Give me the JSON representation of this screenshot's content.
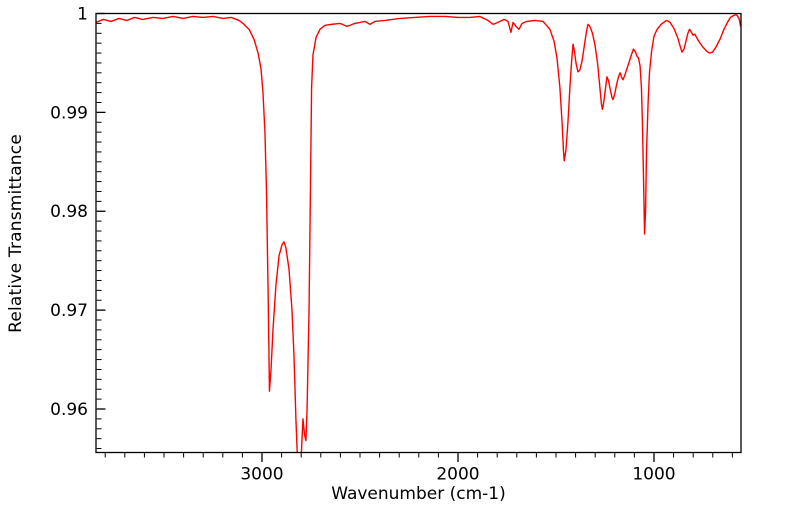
{
  "figure": {
    "background": "#ffffff",
    "axis_color": "#000000"
  },
  "chart_data": {
    "type": "line",
    "title": "",
    "xlabel": "Wavenumber (cm-1)",
    "ylabel": "Relative Transmittance",
    "grid": false,
    "legend": null,
    "x_axis": {
      "lim": [
        3847,
        556
      ],
      "reversed": true,
      "major_ticks": [
        3000,
        2000,
        1000
      ],
      "major_tick_labels": [
        "3000",
        "2000",
        "1000"
      ],
      "minor_tick_step": 100
    },
    "y_axis": {
      "lim": [
        0.9556,
        1.0
      ],
      "major_ticks": [
        1.0,
        0.99,
        0.98,
        0.97,
        0.96
      ],
      "major_tick_labels": [
        "1",
        "0.99",
        "0.98",
        "0.97",
        "0.96"
      ],
      "minor_tick_step": 0.001
    },
    "series": [
      {
        "name": "ir-spectrum",
        "color": "#ff0000",
        "line_width": 1.4,
        "points": [
          [
            3847,
            0.9991
          ],
          [
            3810,
            0.9994
          ],
          [
            3770,
            0.9992
          ],
          [
            3730,
            0.9995
          ],
          [
            3690,
            0.9993
          ],
          [
            3650,
            0.9996
          ],
          [
            3610,
            0.9994
          ],
          [
            3556,
            0.9996
          ],
          [
            3505,
            0.9995
          ],
          [
            3454,
            0.9997
          ],
          [
            3403,
            0.9995
          ],
          [
            3352,
            0.9997
          ],
          [
            3301,
            0.9996
          ],
          [
            3250,
            0.9997
          ],
          [
            3199,
            0.9995
          ],
          [
            3158,
            0.9996
          ],
          [
            3117,
            0.9993
          ],
          [
            3097,
            0.999
          ],
          [
            3066,
            0.9984
          ],
          [
            3041,
            0.9974
          ],
          [
            3020,
            0.996
          ],
          [
            3005,
            0.9944
          ],
          [
            2995,
            0.992
          ],
          [
            2985,
            0.988
          ],
          [
            2977,
            0.982
          ],
          [
            2969,
            0.972
          ],
          [
            2962,
            0.9618
          ],
          [
            2954,
            0.964
          ],
          [
            2944,
            0.968
          ],
          [
            2929,
            0.9725
          ],
          [
            2913,
            0.9755
          ],
          [
            2898,
            0.9766
          ],
          [
            2888,
            0.9769
          ],
          [
            2878,
            0.9763
          ],
          [
            2862,
            0.9741
          ],
          [
            2847,
            0.97
          ],
          [
            2837,
            0.9655
          ],
          [
            2827,
            0.959
          ],
          [
            2819,
            0.955
          ],
          [
            2811,
            0.9532
          ],
          [
            2801,
            0.9548
          ],
          [
            2791,
            0.959
          ],
          [
            2783,
            0.9574
          ],
          [
            2776,
            0.9568
          ],
          [
            2770,
            0.96
          ],
          [
            2760,
            0.97
          ],
          [
            2753,
            0.982
          ],
          [
            2747,
            0.9925
          ],
          [
            2740,
            0.9958
          ],
          [
            2724,
            0.9976
          ],
          [
            2704,
            0.9984
          ],
          [
            2679,
            0.9988
          ],
          [
            2648,
            0.9989
          ],
          [
            2602,
            0.999
          ],
          [
            2566,
            0.9987
          ],
          [
            2526,
            0.999
          ],
          [
            2474,
            0.9992
          ],
          [
            2449,
            0.9989
          ],
          [
            2423,
            0.9992
          ],
          [
            2372,
            0.9993
          ],
          [
            2296,
            0.9995
          ],
          [
            2219,
            0.9996
          ],
          [
            2143,
            0.9997
          ],
          [
            2066,
            0.9997
          ],
          [
            2000,
            0.9996
          ],
          [
            1939,
            0.9996
          ],
          [
            1888,
            0.9997
          ],
          [
            1847,
            0.9993
          ],
          [
            1821,
            0.9989
          ],
          [
            1796,
            0.9991
          ],
          [
            1765,
            0.9994
          ],
          [
            1745,
            0.9992
          ],
          [
            1730,
            0.9981
          ],
          [
            1719,
            0.9991
          ],
          [
            1704,
            0.9987
          ],
          [
            1689,
            0.9984
          ],
          [
            1673,
            0.999
          ],
          [
            1648,
            0.9992
          ],
          [
            1607,
            0.9993
          ],
          [
            1566,
            0.9992
          ],
          [
            1531,
            0.9984
          ],
          [
            1510,
            0.9972
          ],
          [
            1495,
            0.9955
          ],
          [
            1480,
            0.9925
          ],
          [
            1469,
            0.989
          ],
          [
            1462,
            0.9862
          ],
          [
            1458,
            0.9851
          ],
          [
            1449,
            0.9862
          ],
          [
            1439,
            0.989
          ],
          [
            1429,
            0.9925
          ],
          [
            1421,
            0.995
          ],
          [
            1413,
            0.9969
          ],
          [
            1406,
            0.9962
          ],
          [
            1398,
            0.995
          ],
          [
            1388,
            0.9941
          ],
          [
            1378,
            0.9943
          ],
          [
            1367,
            0.9952
          ],
          [
            1355,
            0.9968
          ],
          [
            1344,
            0.9982
          ],
          [
            1337,
            0.9989
          ],
          [
            1327,
            0.9987
          ],
          [
            1314,
            0.998
          ],
          [
            1301,
            0.9968
          ],
          [
            1288,
            0.995
          ],
          [
            1276,
            0.9925
          ],
          [
            1268,
            0.9908
          ],
          [
            1263,
            0.9903
          ],
          [
            1255,
            0.9912
          ],
          [
            1247,
            0.9925
          ],
          [
            1240,
            0.9936
          ],
          [
            1232,
            0.9932
          ],
          [
            1222,
            0.9922
          ],
          [
            1214,
            0.9915
          ],
          [
            1209,
            0.9913
          ],
          [
            1201,
            0.9918
          ],
          [
            1191,
            0.9928
          ],
          [
            1181,
            0.9936
          ],
          [
            1173,
            0.994
          ],
          [
            1166,
            0.9936
          ],
          [
            1158,
            0.9933
          ],
          [
            1148,
            0.9938
          ],
          [
            1135,
            0.9946
          ],
          [
            1122,
            0.9954
          ],
          [
            1112,
            0.996
          ],
          [
            1105,
            0.9964
          ],
          [
            1094,
            0.9961
          ],
          [
            1087,
            0.9957
          ],
          [
            1079,
            0.9955
          ],
          [
            1071,
            0.9947
          ],
          [
            1064,
            0.9925
          ],
          [
            1059,
            0.989
          ],
          [
            1053,
            0.983
          ],
          [
            1048,
            0.9777
          ],
          [
            1043,
            0.98
          ],
          [
            1038,
            0.986
          ],
          [
            1030,
            0.991
          ],
          [
            1023,
            0.994
          ],
          [
            1012,
            0.9962
          ],
          [
            1000,
            0.9977
          ],
          [
            984,
            0.9984
          ],
          [
            964,
            0.9989
          ],
          [
            944,
            0.9992
          ],
          [
            934,
            0.9993
          ],
          [
            918,
            0.9991
          ],
          [
            898,
            0.9985
          ],
          [
            878,
            0.9975
          ],
          [
            865,
            0.9966
          ],
          [
            857,
            0.9961
          ],
          [
            847,
            0.9964
          ],
          [
            837,
            0.9972
          ],
          [
            827,
            0.998
          ],
          [
            819,
            0.9984
          ],
          [
            811,
            0.9982
          ],
          [
            801,
            0.9978
          ],
          [
            791,
            0.9979
          ],
          [
            778,
            0.9974
          ],
          [
            765,
            0.997
          ],
          [
            750,
            0.9966
          ],
          [
            732,
            0.9962
          ],
          [
            717,
            0.996
          ],
          [
            701,
            0.9961
          ],
          [
            684,
            0.9966
          ],
          [
            663,
            0.9974
          ],
          [
            643,
            0.9984
          ],
          [
            625,
            0.9991
          ],
          [
            610,
            0.9996
          ],
          [
            594,
            0.9998
          ],
          [
            579,
            0.9999
          ],
          [
            566,
            0.9995
          ],
          [
            558,
            0.9987
          ]
        ]
      }
    ]
  }
}
